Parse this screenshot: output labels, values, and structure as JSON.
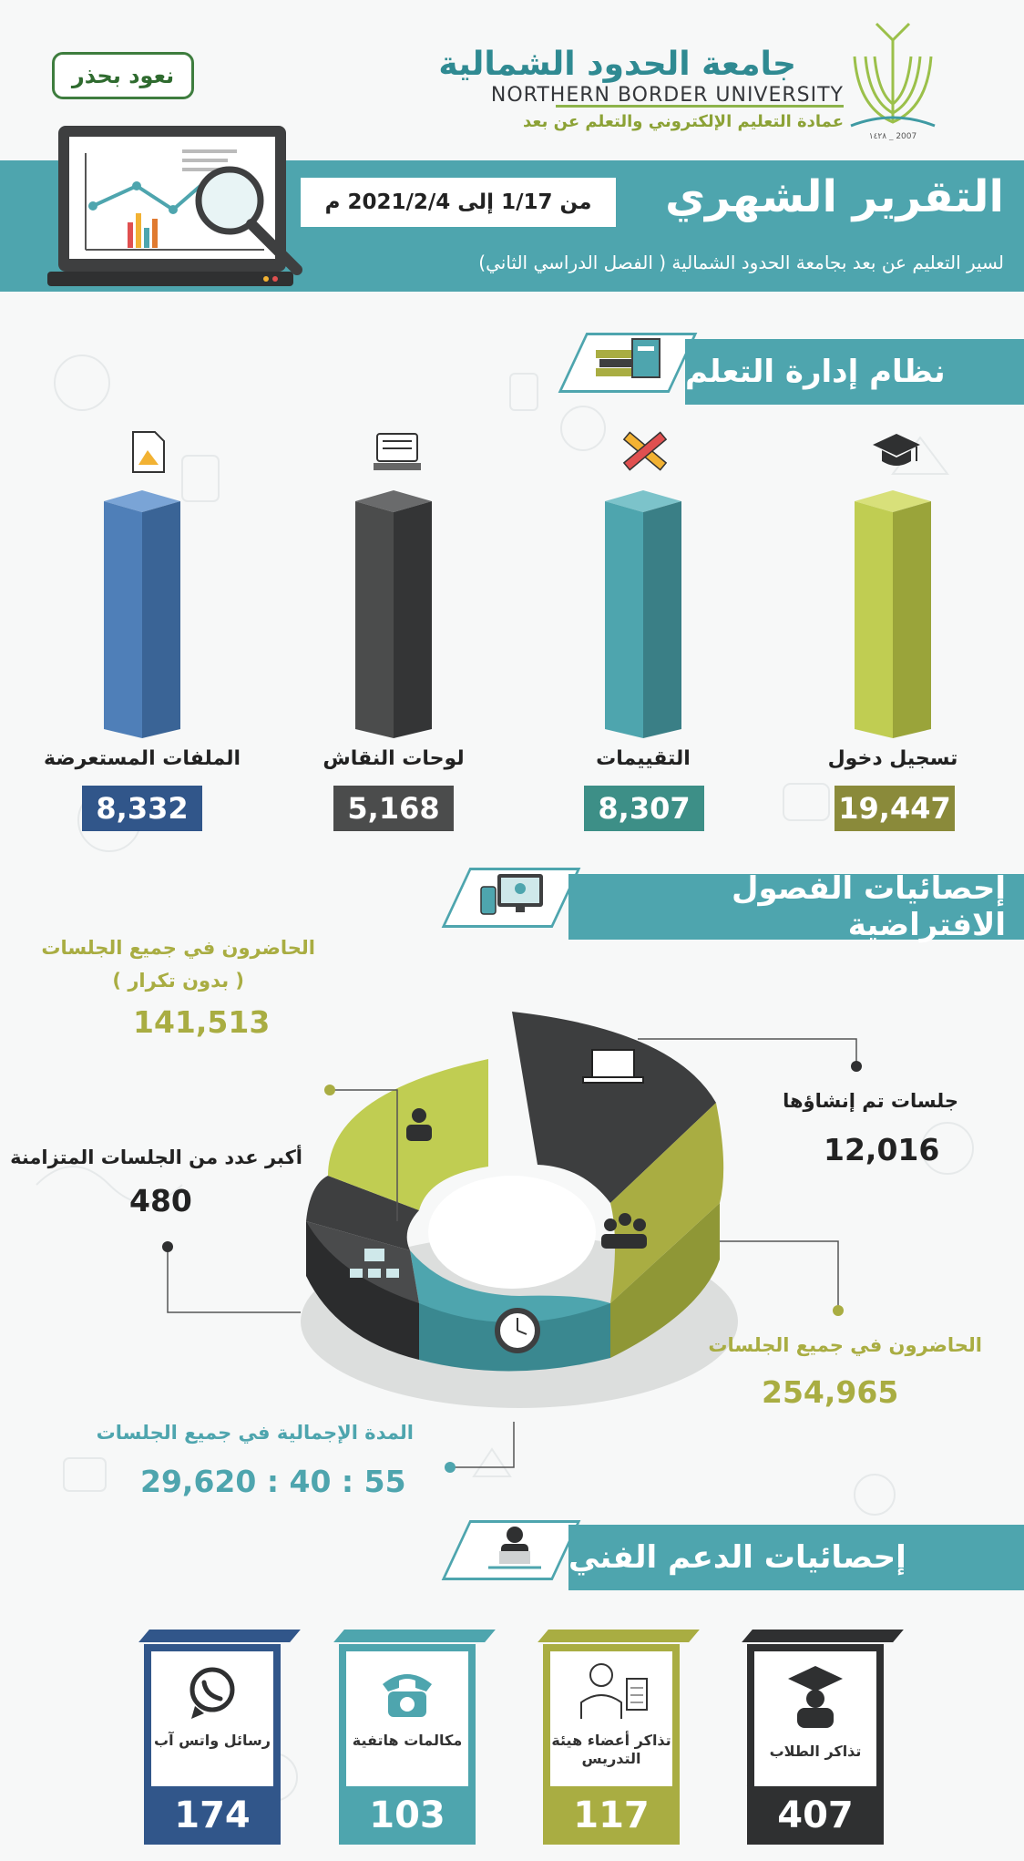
{
  "header": {
    "university_ar": "جامعة الحدود الشمالية",
    "university_en": "NORTHERN BORDER UNIVERSITY",
    "deanship": "عمادة التعليم الإلكتروني والتعلم عن بعد",
    "logo_years": "١٤٢٨ _ 2007",
    "badge": "نعود بحذر"
  },
  "banner": {
    "title": "التقرير الشهري",
    "date_range": "من 1/17 إلى 2021/2/4 م",
    "subtitle": "لسير التعليم عن بعد بجامعة الحدود الشمالية ( الفصل الدراسي الثاني)"
  },
  "lms": {
    "heading": "نظام إدارة التعلم",
    "items": [
      {
        "label": "تسجيل دخول",
        "value": "19,447",
        "icon": "graduation-cap-icon",
        "color": "#c0cd52",
        "box_color": "#8a8a3a"
      },
      {
        "label": "التقييمات",
        "value": "8,307",
        "icon": "ruler-pencil-icon",
        "color": "#4ea5ae",
        "box_color": "#3d8f87"
      },
      {
        "label": "لوحات النقاش",
        "value": "5,168",
        "icon": "discussion-board-icon",
        "color": "#4b4c4c",
        "box_color": "#4b4c4c"
      },
      {
        "label": "الملفات المستعرضة",
        "value": "8,332",
        "icon": "file-icon",
        "color": "#4f7fb8",
        "box_color": "#31568a"
      }
    ]
  },
  "virtual": {
    "heading": "إحصائيات الفصول الافتراضية",
    "stats": {
      "sessions_created_label": "جلسات تم إنشاؤها",
      "sessions_created_value": "12,016",
      "attendees_label": "الحاضرون في جميع الجلسات",
      "attendees_value": "254,965",
      "duration_label": "المدة الإجمالية في جميع الجلسات",
      "duration_value": "29,620 : 40 : 55",
      "max_concurrent_label": "أكبر عدد من الجلسات المتزامنة",
      "max_concurrent_value": "480",
      "unique_attendees_label": "الحاضرون في جميع الجلسات",
      "unique_attendees_note": "( بدون تكرار )",
      "unique_attendees_value": "141,513"
    },
    "colors": {
      "dark": "#3d3e3f",
      "olive": "#a9ad42",
      "lime": "#c0cd52",
      "teal": "#4ea5ae",
      "charcoal": "#4a4b4c"
    }
  },
  "support": {
    "heading": "إحصائيات الدعم الفني",
    "cards": [
      {
        "label": "تذاكر الطلاب",
        "value": "407",
        "icon": "graduate-icon",
        "color": "#2f3031"
      },
      {
        "label": "تذاكر أعضاء هيئة التدريس",
        "value": "117",
        "icon": "teacher-icon",
        "color": "#a9ad42"
      },
      {
        "label": "مكالمات هاتفية",
        "value": "103",
        "icon": "telephone-icon",
        "color": "#4ea5ae"
      },
      {
        "label": "رسائل واتس آب",
        "value": "174",
        "icon": "whatsapp-icon",
        "color": "#31568a"
      }
    ]
  }
}
